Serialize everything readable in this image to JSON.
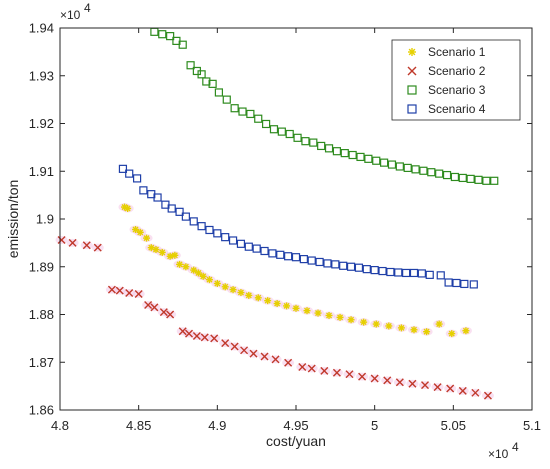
{
  "chart_data": {
    "type": "scatter",
    "title": "",
    "xlabel": "cost/yuan",
    "ylabel": "emission/ton",
    "x_multiplier": "×10^4",
    "y_multiplier": "×10^4",
    "xlim": [
      48000,
      51000
    ],
    "ylim": [
      18600,
      19400
    ],
    "x_ticks": [
      "4.8",
      "4.85",
      "4.9",
      "4.95",
      "5",
      "5.05",
      "5.1"
    ],
    "y_ticks": [
      "1.86",
      "1.87",
      "1.88",
      "1.89",
      "1.9",
      "1.91",
      "1.92",
      "1.93",
      "1.94"
    ],
    "x_exponent_label": "×10",
    "y_exponent_label": "×10",
    "exponent_power": "4",
    "grid": false,
    "legend_position": "top-right",
    "series": [
      {
        "name": "Scenario 1",
        "marker": "asterisk",
        "color": "#E6D000",
        "points": [
          [
            48410,
            19025
          ],
          [
            48430,
            19022
          ],
          [
            48480,
            18978
          ],
          [
            48510,
            18972
          ],
          [
            48550,
            18960
          ],
          [
            48580,
            18940
          ],
          [
            48610,
            18936
          ],
          [
            48650,
            18930
          ],
          [
            48700,
            18922
          ],
          [
            48730,
            18924
          ],
          [
            48760,
            18905
          ],
          [
            48800,
            18900
          ],
          [
            48850,
            18893
          ],
          [
            48880,
            18887
          ],
          [
            48910,
            18880
          ],
          [
            48950,
            18873
          ],
          [
            49000,
            18865
          ],
          [
            49050,
            18858
          ],
          [
            49100,
            18852
          ],
          [
            49150,
            18846
          ],
          [
            49200,
            18840
          ],
          [
            49260,
            18835
          ],
          [
            49320,
            18829
          ],
          [
            49380,
            18823
          ],
          [
            49440,
            18818
          ],
          [
            49500,
            18813
          ],
          [
            49570,
            18808
          ],
          [
            49640,
            18803
          ],
          [
            49710,
            18798
          ],
          [
            49780,
            18794
          ],
          [
            49850,
            18789
          ],
          [
            49930,
            18784
          ],
          [
            50010,
            18780
          ],
          [
            50090,
            18776
          ],
          [
            50170,
            18772
          ],
          [
            50250,
            18768
          ],
          [
            50330,
            18764
          ],
          [
            50410,
            18780
          ],
          [
            50490,
            18760
          ],
          [
            50580,
            18766
          ]
        ]
      },
      {
        "name": "Scenario 2",
        "marker": "x",
        "color": "#C0392B",
        "points": [
          [
            48010,
            18956
          ],
          [
            48080,
            18950
          ],
          [
            48170,
            18945
          ],
          [
            48240,
            18940
          ],
          [
            48330,
            18852
          ],
          [
            48380,
            18850
          ],
          [
            48440,
            18845
          ],
          [
            48500,
            18843
          ],
          [
            48560,
            18820
          ],
          [
            48600,
            18815
          ],
          [
            48660,
            18805
          ],
          [
            48700,
            18800
          ],
          [
            48780,
            18765
          ],
          [
            48820,
            18760
          ],
          [
            48870,
            18755
          ],
          [
            48920,
            18752
          ],
          [
            48980,
            18750
          ],
          [
            49050,
            18740
          ],
          [
            49110,
            18733
          ],
          [
            49170,
            18725
          ],
          [
            49230,
            18718
          ],
          [
            49300,
            18712
          ],
          [
            49370,
            18706
          ],
          [
            49450,
            18699
          ],
          [
            49540,
            18690
          ],
          [
            49600,
            18687
          ],
          [
            49680,
            18682
          ],
          [
            49760,
            18678
          ],
          [
            49840,
            18675
          ],
          [
            49920,
            18670
          ],
          [
            50000,
            18666
          ],
          [
            50080,
            18662
          ],
          [
            50160,
            18658
          ],
          [
            50240,
            18655
          ],
          [
            50320,
            18652
          ],
          [
            50400,
            18648
          ],
          [
            50480,
            18645
          ],
          [
            50560,
            18640
          ],
          [
            50640,
            18636
          ],
          [
            50720,
            18630
          ]
        ]
      },
      {
        "name": "Scenario 3",
        "marker": "square",
        "color": "#2E8B1E",
        "points": [
          [
            48600,
            19392
          ],
          [
            48650,
            19387
          ],
          [
            48700,
            19383
          ],
          [
            48740,
            19373
          ],
          [
            48780,
            19365
          ],
          [
            48830,
            19322
          ],
          [
            48870,
            19310
          ],
          [
            48900,
            19303
          ],
          [
            48930,
            19288
          ],
          [
            48970,
            19283
          ],
          [
            49010,
            19265
          ],
          [
            49060,
            19250
          ],
          [
            49110,
            19232
          ],
          [
            49160,
            19225
          ],
          [
            49210,
            19220
          ],
          [
            49260,
            19210
          ],
          [
            49310,
            19199
          ],
          [
            49360,
            19188
          ],
          [
            49410,
            19183
          ],
          [
            49460,
            19178
          ],
          [
            49510,
            19170
          ],
          [
            49560,
            19163
          ],
          [
            49610,
            19160
          ],
          [
            49660,
            19153
          ],
          [
            49710,
            19148
          ],
          [
            49760,
            19142
          ],
          [
            49810,
            19138
          ],
          [
            49860,
            19134
          ],
          [
            49910,
            19130
          ],
          [
            49960,
            19126
          ],
          [
            50010,
            19122
          ],
          [
            50060,
            19118
          ],
          [
            50110,
            19114
          ],
          [
            50160,
            19110
          ],
          [
            50210,
            19107
          ],
          [
            50260,
            19104
          ],
          [
            50310,
            19101
          ],
          [
            50360,
            19098
          ],
          [
            50410,
            19095
          ],
          [
            50460,
            19092
          ],
          [
            50510,
            19088
          ],
          [
            50560,
            19086
          ],
          [
            50610,
            19084
          ],
          [
            50660,
            19082
          ],
          [
            50710,
            19080
          ],
          [
            50760,
            19080
          ]
        ]
      },
      {
        "name": "Scenario 4",
        "marker": "square",
        "color": "#1F3FA8",
        "points": [
          [
            48400,
            19105
          ],
          [
            48440,
            19095
          ],
          [
            48490,
            19085
          ],
          [
            48530,
            19060
          ],
          [
            48580,
            19052
          ],
          [
            48620,
            19045
          ],
          [
            48670,
            19030
          ],
          [
            48710,
            19022
          ],
          [
            48760,
            19015
          ],
          [
            48800,
            19005
          ],
          [
            48850,
            18995
          ],
          [
            48900,
            18985
          ],
          [
            48950,
            18977
          ],
          [
            49000,
            18970
          ],
          [
            49050,
            18962
          ],
          [
            49100,
            18955
          ],
          [
            49150,
            18948
          ],
          [
            49200,
            18942
          ],
          [
            49250,
            18938
          ],
          [
            49300,
            18933
          ],
          [
            49350,
            18928
          ],
          [
            49400,
            18925
          ],
          [
            49450,
            18922
          ],
          [
            49500,
            18920
          ],
          [
            49550,
            18916
          ],
          [
            49600,
            18913
          ],
          [
            49650,
            18910
          ],
          [
            49700,
            18907
          ],
          [
            49750,
            18905
          ],
          [
            49800,
            18902
          ],
          [
            49850,
            18900
          ],
          [
            49900,
            18898
          ],
          [
            49950,
            18895
          ],
          [
            50000,
            18893
          ],
          [
            50050,
            18891
          ],
          [
            50100,
            18889
          ],
          [
            50150,
            18888
          ],
          [
            50200,
            18887
          ],
          [
            50250,
            18887
          ],
          [
            50300,
            18886
          ],
          [
            50350,
            18883
          ],
          [
            50420,
            18882
          ],
          [
            50470,
            18867
          ],
          [
            50520,
            18866
          ],
          [
            50570,
            18864
          ],
          [
            50630,
            18863
          ]
        ]
      }
    ]
  }
}
